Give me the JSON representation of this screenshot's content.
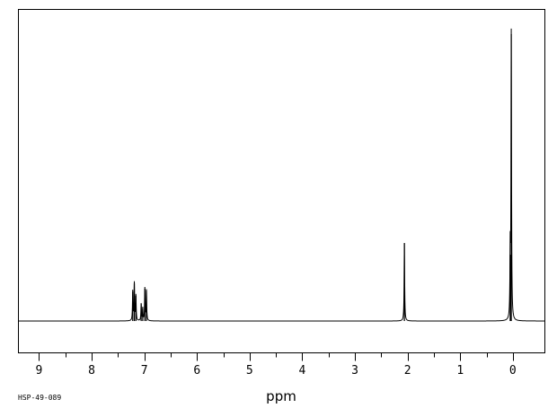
{
  "chart_data": {
    "type": "line",
    "title": "",
    "xlabel": "ppm",
    "ylabel": "",
    "spectrum_code": "HSP-49-089",
    "x_reversed": true,
    "xlim": [
      9.4,
      -0.6
    ],
    "ylim": [
      0,
      100
    ],
    "grid": false,
    "ticks": {
      "major": [
        9,
        8,
        7,
        6,
        5,
        4,
        3,
        2,
        1,
        0
      ],
      "major_labels": [
        "9",
        "8",
        "7",
        "6",
        "5",
        "4",
        "3",
        "2",
        "1",
        "0"
      ],
      "minor_step": 0.5
    },
    "series": [
      {
        "peaks": [
          {
            "ppm": 7.22,
            "height": 10.3
          },
          {
            "ppm": 7.19,
            "height": 13.1
          },
          {
            "ppm": 7.16,
            "height": 8.8
          },
          {
            "ppm": 7.06,
            "height": 5.9
          },
          {
            "ppm": 7.03,
            "height": 4.4
          },
          {
            "ppm": 6.99,
            "height": 11.3
          },
          {
            "ppm": 6.96,
            "height": 10.6
          },
          {
            "ppm": 2.06,
            "height": 27.2
          },
          {
            "ppm": 0.05,
            "height": 23.1
          },
          {
            "ppm": 0.03,
            "height": 100.0
          }
        ]
      }
    ],
    "colors": {
      "line": "#000000",
      "frame": "#000000",
      "background": "#ffffff"
    }
  }
}
